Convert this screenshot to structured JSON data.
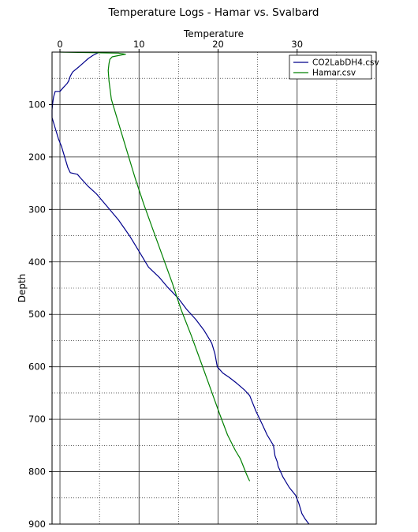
{
  "chart_data": {
    "type": "line",
    "title": "Temperature Logs - Hamar vs. Svalbard",
    "xlabel": "Temperature",
    "ylabel": "Depth",
    "x_axis_position": "top",
    "y_inverted": true,
    "xlim": [
      -1,
      40
    ],
    "ylim": [
      900,
      0
    ],
    "x_ticks": [
      0,
      10,
      20,
      30
    ],
    "y_ticks": [
      100,
      200,
      300,
      400,
      500,
      600,
      700,
      800,
      900
    ],
    "grid": true,
    "legend_position": "top-right",
    "series": [
      {
        "name": "CO2LabDH4.csv",
        "color": "#00008b",
        "points": [
          [
            5,
            0
          ],
          [
            4.6,
            3
          ],
          [
            4.2,
            6
          ],
          [
            3.6,
            12
          ],
          [
            3,
            20
          ],
          [
            2.4,
            28
          ],
          [
            1.6,
            38
          ],
          [
            1.3,
            46
          ],
          [
            1.1,
            55
          ],
          [
            0.9,
            60
          ],
          [
            0.4,
            68
          ],
          [
            0,
            75
          ],
          [
            -0.6,
            75
          ],
          [
            -0.8,
            85
          ],
          [
            -0.9,
            95
          ],
          [
            -1,
            110
          ],
          [
            -1,
            125
          ],
          [
            -0.7,
            140
          ],
          [
            -0.2,
            165
          ],
          [
            0.2,
            180
          ],
          [
            0.6,
            200
          ],
          [
            1,
            220
          ],
          [
            1.3,
            230
          ],
          [
            2.2,
            233
          ],
          [
            2.6,
            240
          ],
          [
            3.5,
            255
          ],
          [
            4.6,
            270
          ],
          [
            6,
            295
          ],
          [
            7.4,
            320
          ],
          [
            8.8,
            350
          ],
          [
            9.6,
            370
          ],
          [
            10.4,
            390
          ],
          [
            11.2,
            410
          ],
          [
            12.6,
            430
          ],
          [
            13.6,
            448
          ],
          [
            15,
            470
          ],
          [
            16,
            490
          ],
          [
            17.2,
            510
          ],
          [
            18.2,
            530
          ],
          [
            18.8,
            545
          ],
          [
            19.2,
            555
          ],
          [
            19.6,
            575
          ],
          [
            19.9,
            600
          ],
          [
            20.6,
            612
          ],
          [
            21.4,
            620
          ],
          [
            22.4,
            632
          ],
          [
            23.4,
            645
          ],
          [
            24,
            655
          ],
          [
            24.4,
            670
          ],
          [
            24.8,
            685
          ],
          [
            25.6,
            710
          ],
          [
            26.2,
            730
          ],
          [
            27,
            750
          ],
          [
            27.2,
            770
          ],
          [
            27.5,
            782
          ],
          [
            27.6,
            790
          ],
          [
            28.2,
            810
          ],
          [
            29,
            830
          ],
          [
            29.8,
            845
          ],
          [
            30.2,
            860
          ],
          [
            30.6,
            880
          ],
          [
            31,
            890
          ],
          [
            31.5,
            900
          ]
        ]
      },
      {
        "name": "Hamar.csv",
        "color": "#008000",
        "points": [
          [
            0,
            0
          ],
          [
            3.8,
            1
          ],
          [
            7.4,
            2
          ],
          [
            8.3,
            4
          ],
          [
            7.6,
            6
          ],
          [
            6.6,
            9
          ],
          [
            6.3,
            14
          ],
          [
            6.2,
            22
          ],
          [
            6.1,
            35
          ],
          [
            6.2,
            55
          ],
          [
            6.5,
            90
          ],
          [
            7.3,
            130
          ],
          [
            8.3,
            180
          ],
          [
            9.5,
            240
          ],
          [
            10.6,
            290
          ],
          [
            11.8,
            340
          ],
          [
            13,
            390
          ],
          [
            14.2,
            440
          ],
          [
            15.3,
            490
          ],
          [
            16.6,
            540
          ],
          [
            17.8,
            590
          ],
          [
            19,
            640
          ],
          [
            20.2,
            690
          ],
          [
            21.2,
            730
          ],
          [
            22.2,
            760
          ],
          [
            22.8,
            775
          ],
          [
            23.2,
            790
          ],
          [
            23.6,
            805
          ],
          [
            23.8,
            812
          ],
          [
            24,
            818
          ]
        ]
      }
    ]
  }
}
